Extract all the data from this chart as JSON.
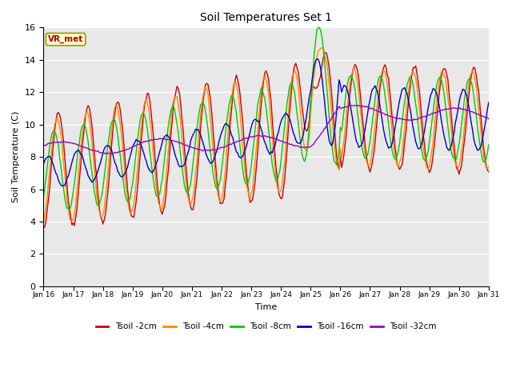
{
  "title": "Soil Temperatures Set 1",
  "xlabel": "Time",
  "ylabel": "Soil Temperature (C)",
  "ylim": [
    0,
    16
  ],
  "xlim": [
    0,
    15
  ],
  "xtick_labels": [
    "Jan 16",
    "Jan 17",
    "Jan 18",
    "Jan 19",
    "Jan 20",
    "Jan 21",
    "Jan 22",
    "Jan 23",
    "Jan 24",
    "Jan 25",
    "Jan 26",
    "Jan 27",
    "Jan 28",
    "Jan 29",
    "Jan 30",
    "Jan 31"
  ],
  "annotation_text": "VR_met",
  "colors": {
    "tsoil_2cm": "#cc0000",
    "tsoil_4cm": "#ff8800",
    "tsoil_8cm": "#00cc00",
    "tsoil_16cm": "#0000cc",
    "tsoil_32cm": "#9900cc"
  },
  "legend_labels": [
    "Tsoil -2cm",
    "Tsoil -4cm",
    "Tsoil -8cm",
    "Tsoil -16cm",
    "Tsoil -32cm"
  ],
  "plot_bg": "#e8e8e8",
  "fig_bg": "#ffffff"
}
